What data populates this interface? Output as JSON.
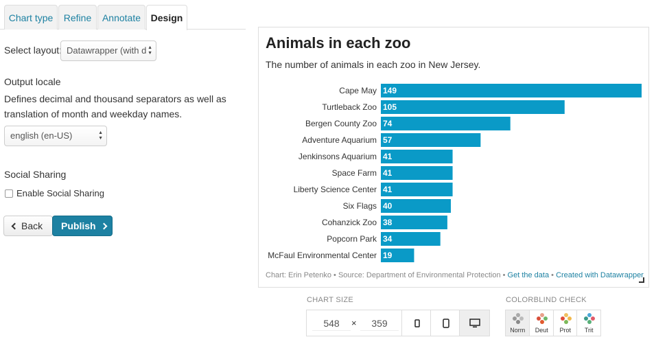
{
  "tabs": [
    {
      "label": "Chart type",
      "active": false
    },
    {
      "label": "Refine",
      "active": false
    },
    {
      "label": "Annotate",
      "active": false
    },
    {
      "label": "Design",
      "active": true
    }
  ],
  "layout": {
    "label": "Select layout:",
    "value": "Datawrapper (with d"
  },
  "locale": {
    "title": "Output locale",
    "description": "Defines decimal and thousand separators as well as translation of month and weekday names.",
    "value": "english (en-US)"
  },
  "social": {
    "title": "Social Sharing",
    "checkbox_label": "Enable Social Sharing",
    "checked": false
  },
  "buttons": {
    "back": "Back",
    "publish": "Publish"
  },
  "chart": {
    "title": "Animals in each zoo",
    "subtitle": "The number of animals in each zoo in New Jersey.",
    "footer": {
      "credit": "Chart: Erin Petenko • Source: Department of Environmental Protection • ",
      "get_data": "Get the data",
      "sep": " • ",
      "created_with": "Created with Datawrapper"
    },
    "bar_color": "#0a9ac7"
  },
  "chart_data": {
    "type": "bar",
    "orientation": "horizontal",
    "title": "Animals in each zoo",
    "subtitle": "The number of animals in each zoo in New Jersey.",
    "categories": [
      "Cape May",
      "Turtleback Zoo",
      "Bergen County Zoo",
      "Adventure Aquarium",
      "Jenkinsons Aquarium",
      "Space Farm",
      "Liberty Science Center",
      "Six Flags",
      "Cohanzick Zoo",
      "Popcorn Park",
      "McFaul Environmental Center"
    ],
    "values": [
      149,
      105,
      74,
      57,
      41,
      41,
      41,
      40,
      38,
      34,
      19
    ],
    "xlim": [
      0,
      149
    ],
    "grid": false,
    "source": "Department of Environmental Protection"
  },
  "chart_size": {
    "label": "CHART SIZE",
    "width": "548",
    "height": "359",
    "times": "×"
  },
  "colorblind": {
    "label": "COLORBLIND CHECK",
    "options": [
      {
        "label": "Norm",
        "active": true
      },
      {
        "label": "Deut",
        "active": false
      },
      {
        "label": "Prot",
        "active": false
      },
      {
        "label": "Trit",
        "active": false
      }
    ]
  }
}
